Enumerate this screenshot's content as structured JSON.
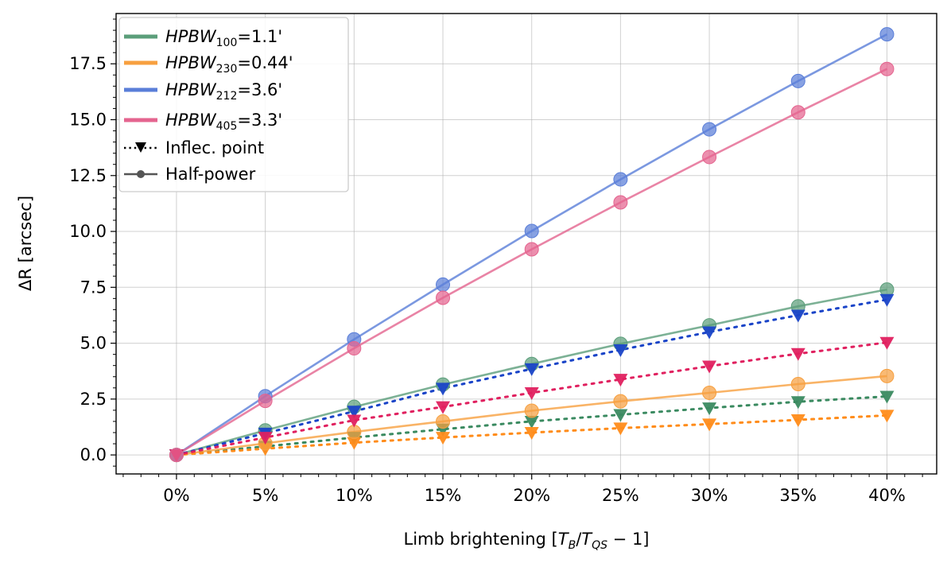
{
  "chart_data": {
    "type": "line",
    "title": "",
    "xlabel": {
      "pre": "Limb brightening [",
      "t": "T",
      "b_sub": "B",
      "slash": "/",
      "t2": "T",
      "qs_sub": "QS",
      "post": " − 1]"
    },
    "ylabel": "ΔR [arcsec]",
    "x": [
      0,
      5,
      10,
      15,
      20,
      25,
      30,
      35,
      40
    ],
    "x_tick_labels": [
      "0%",
      "5%",
      "10%",
      "15%",
      "20%",
      "25%",
      "30%",
      "35%",
      "40%"
    ],
    "xlim": [
      -3.4,
      42.8
    ],
    "ylim": [
      -0.85,
      19.75
    ],
    "y_ticks": [
      0.0,
      2.5,
      5.0,
      7.5,
      10.0,
      12.5,
      15.0,
      17.5
    ],
    "y_tick_labels": [
      "0.0",
      "2.5",
      "5.0",
      "7.5",
      "10.0",
      "12.5",
      "15.0",
      "17.5"
    ],
    "grid": true,
    "legend_position": "top-left",
    "series": [
      {
        "id": "hpbw100",
        "legend": {
          "prefix": "HPBW",
          "sub": "100",
          "value": "=1.1'"
        },
        "color": "#5b9e7a",
        "inflec_color": "#3a8a60",
        "half_power": [
          0.0,
          1.1,
          2.15,
          3.15,
          4.07,
          4.97,
          5.8,
          6.65,
          7.4
        ],
        "inflec_point": [
          0.0,
          0.38,
          0.78,
          1.15,
          1.5,
          1.8,
          2.1,
          2.38,
          2.62
        ]
      },
      {
        "id": "hpbw230",
        "legend": {
          "prefix": "HPBW",
          "sub": "230",
          "value": "=0.44'"
        },
        "color": "#f7a040",
        "inflec_color": "#ff8c1a",
        "half_power": [
          0.0,
          0.52,
          1.03,
          1.5,
          1.98,
          2.4,
          2.78,
          3.17,
          3.53
        ],
        "inflec_point": [
          0.0,
          0.28,
          0.55,
          0.78,
          1.0,
          1.2,
          1.38,
          1.57,
          1.77
        ]
      },
      {
        "id": "hpbw212",
        "legend": {
          "prefix": "HPBW",
          "sub": "212",
          "value": "=3.6'"
        },
        "color": "#5a7ed8",
        "inflec_color": "#1a44c8",
        "half_power": [
          0.0,
          2.63,
          5.17,
          7.62,
          10.02,
          12.33,
          14.57,
          16.73,
          18.82
        ],
        "inflec_point": [
          0.0,
          0.97,
          1.95,
          2.98,
          3.85,
          4.7,
          5.5,
          6.25,
          6.95
        ]
      },
      {
        "id": "hpbw405",
        "legend": {
          "prefix": "HPBW",
          "sub": "405",
          "value": "=3.3'"
        },
        "color": "#e4648f",
        "inflec_color": "#e0205f",
        "half_power": [
          0.0,
          2.42,
          4.77,
          7.03,
          9.2,
          11.3,
          13.33,
          15.33,
          17.27
        ],
        "inflec_point": [
          0.0,
          0.78,
          1.55,
          2.15,
          2.78,
          3.38,
          3.97,
          4.53,
          5.03
        ]
      }
    ],
    "style_legend": [
      {
        "id": "inflec",
        "label": "Inflec. point",
        "color": "#000000"
      },
      {
        "id": "half",
        "label": "Half-power",
        "color": "#555555"
      }
    ]
  }
}
